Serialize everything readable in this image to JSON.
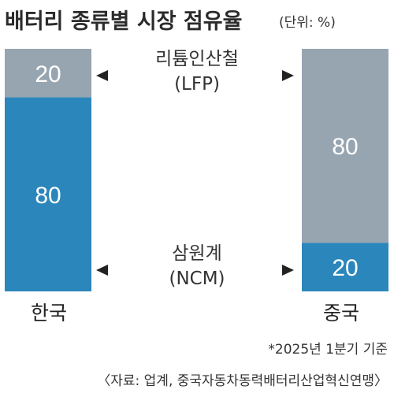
{
  "chart_data": {
    "type": "bar",
    "stacked": true,
    "normalized": true,
    "title": "배터리 종류별 시장 점유율",
    "unit": "(단위: %)",
    "categories": [
      "한국",
      "중국"
    ],
    "series": [
      {
        "name": "리튬인산철",
        "name_sub": "(LFP)",
        "values": [
          20,
          80
        ],
        "color": "#97a5b0"
      },
      {
        "name": "삼원계",
        "name_sub": "(NCM)",
        "values": [
          80,
          20
        ],
        "color": "#2b86bb"
      }
    ],
    "value_labels": {
      "korea_lfp": "20",
      "korea_ncm": "80",
      "china_lfp": "80",
      "china_ncm": "20"
    },
    "ylim": [
      0,
      100
    ],
    "note": "*2025년 1분기 기준",
    "source": "〈자료: 업계, 중국자동차동력배터리산업혁신연맹〉"
  }
}
